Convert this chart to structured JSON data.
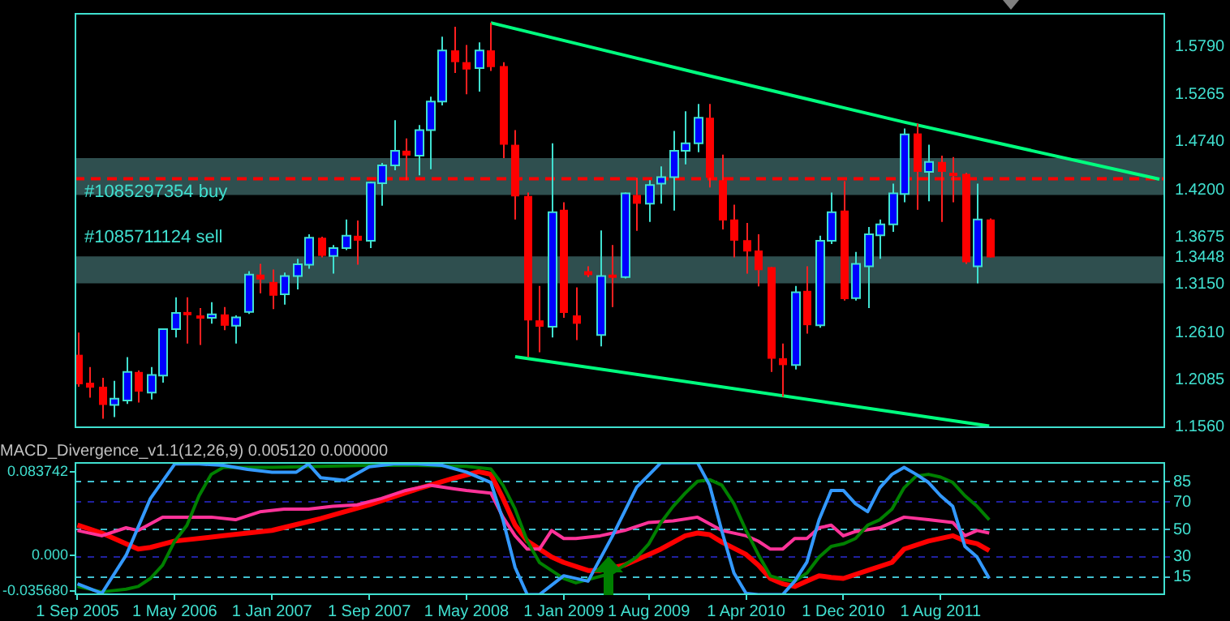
{
  "chart_data": [
    {
      "type": "candlestick",
      "x": [
        "2005-09",
        "2005-10",
        "2005-11",
        "2005-12",
        "2006-01",
        "2006-02",
        "2006-03",
        "2006-04",
        "2006-05",
        "2006-06",
        "2006-07",
        "2006-08",
        "2006-09",
        "2006-10",
        "2006-11",
        "2006-12",
        "2007-01",
        "2007-02",
        "2007-03",
        "2007-04",
        "2007-05",
        "2007-06",
        "2007-07",
        "2007-08",
        "2007-09",
        "2007-10",
        "2007-11",
        "2007-12",
        "2008-01",
        "2008-02",
        "2008-03",
        "2008-04",
        "2008-05",
        "2008-06",
        "2008-07",
        "2008-08",
        "2008-09",
        "2008-10",
        "2008-11",
        "2008-12",
        "2009-01",
        "2009-02",
        "2009-03",
        "2009-04",
        "2009-05",
        "2009-06",
        "2009-07",
        "2009-08",
        "2009-09",
        "2009-10",
        "2009-11",
        "2009-12",
        "2010-01",
        "2010-02",
        "2010-03",
        "2010-04",
        "2010-05",
        "2010-06",
        "2010-07",
        "2010-08",
        "2010-09",
        "2010-10",
        "2010-11",
        "2010-12",
        "2011-01",
        "2011-02",
        "2011-03",
        "2011-04",
        "2011-05",
        "2011-06",
        "2011-07",
        "2011-08",
        "2011-09",
        "2011-10",
        "2011-11",
        "2011-12"
      ],
      "ohlc": [
        [
          1.2365,
          1.2611,
          1.201,
          1.2037
        ],
        [
          1.2054,
          1.2229,
          1.1889,
          1.1999
        ],
        [
          1.201,
          1.2108,
          1.1654,
          1.1807
        ],
        [
          1.1807,
          1.2075,
          1.1671,
          1.1878
        ],
        [
          1.1857,
          1.2338,
          1.1818,
          1.2174
        ],
        [
          1.2174,
          1.219,
          1.1835,
          1.1955
        ],
        [
          1.1944,
          1.2229,
          1.1867,
          1.2141
        ],
        [
          1.2135,
          1.266,
          1.2054,
          1.265
        ],
        [
          1.265,
          1.3005,
          1.2557,
          1.283
        ],
        [
          1.2841,
          1.3005,
          1.2491,
          1.2808
        ],
        [
          1.2803,
          1.2885,
          1.2475,
          1.2776
        ],
        [
          1.2776,
          1.2951,
          1.271,
          1.2814
        ],
        [
          1.2814,
          1.2896,
          1.2639,
          1.2688
        ],
        [
          1.2688,
          1.2803,
          1.2491,
          1.2781
        ],
        [
          1.2841,
          1.3295,
          1.2819,
          1.3257
        ],
        [
          1.3257,
          1.3377,
          1.3049,
          1.3202
        ],
        [
          1.3175,
          1.3312,
          1.2874,
          1.3022
        ],
        [
          1.3038,
          1.3279,
          1.2923,
          1.3241
        ],
        [
          1.3241,
          1.3432,
          1.3093,
          1.3372
        ],
        [
          1.3366,
          1.3705,
          1.3323,
          1.3667
        ],
        [
          1.3667,
          1.3678,
          1.3448,
          1.3465
        ],
        [
          1.3465,
          1.3585,
          1.3268,
          1.3552
        ],
        [
          1.3552,
          1.387,
          1.353,
          1.3689
        ],
        [
          1.3689,
          1.3859,
          1.3366,
          1.3634
        ],
        [
          1.3634,
          1.429,
          1.3552,
          1.428
        ],
        [
          1.4274,
          1.4499,
          1.4023,
          1.4471
        ],
        [
          1.4471,
          1.4975,
          1.4417,
          1.4635
        ],
        [
          1.4635,
          1.4772,
          1.4307,
          1.4581
        ],
        [
          1.4581,
          1.492,
          1.4362,
          1.4865
        ],
        [
          1.4865,
          1.5237,
          1.4428,
          1.5182
        ],
        [
          1.5182,
          1.5904,
          1.5139,
          1.5751
        ],
        [
          1.5751,
          1.6014,
          1.55,
          1.562
        ],
        [
          1.562,
          1.5811,
          1.5264,
          1.5538
        ],
        [
          1.5554,
          1.5839,
          1.5292,
          1.5751
        ],
        [
          1.5751,
          1.6058,
          1.5522,
          1.5565
        ],
        [
          1.5576,
          1.562,
          1.4553,
          1.4701
        ],
        [
          1.4701,
          1.4865,
          1.387,
          1.4127
        ],
        [
          1.4132,
          1.417,
          1.2338,
          1.2748
        ],
        [
          1.2748,
          1.3131,
          1.2393,
          1.2677
        ],
        [
          1.2677,
          1.4717,
          1.2557,
          1.3952
        ],
        [
          1.3979,
          1.4061,
          1.2776,
          1.283
        ],
        [
          1.2803,
          1.3115,
          1.2529,
          1.271
        ],
        [
          1.3295,
          1.335,
          1.323,
          1.3251
        ],
        [
          1.2584,
          1.3749,
          1.2458,
          1.3241
        ],
        [
          1.3257,
          1.3585,
          1.2896,
          1.3235
        ],
        [
          1.323,
          1.417,
          1.3213,
          1.416
        ],
        [
          1.4143,
          1.4334,
          1.3744,
          1.4045
        ],
        [
          1.4045,
          1.4307,
          1.3842,
          1.4252
        ],
        [
          1.4269,
          1.446,
          1.4045,
          1.434
        ],
        [
          1.434,
          1.4854,
          1.397,
          1.4635
        ],
        [
          1.4635,
          1.5073,
          1.4482,
          1.4717
        ],
        [
          1.4717,
          1.5155,
          1.4619,
          1.5002
        ],
        [
          1.5002,
          1.5155,
          1.4225,
          1.4334
        ],
        [
          1.4307,
          1.4592,
          1.376,
          1.3859
        ],
        [
          1.387,
          1.4034,
          1.3448,
          1.3634
        ],
        [
          1.364,
          1.3831,
          1.3268,
          1.3514
        ],
        [
          1.3525,
          1.3705,
          1.3126,
          1.3306
        ],
        [
          1.3339,
          1.3339,
          1.2174,
          1.2321
        ],
        [
          1.2327,
          1.2491,
          1.19,
          1.225
        ],
        [
          1.225,
          1.3131,
          1.2201,
          1.306
        ],
        [
          1.3076,
          1.335,
          1.2601,
          1.2694
        ],
        [
          1.2694,
          1.3689,
          1.2666,
          1.3634
        ],
        [
          1.3634,
          1.417,
          1.3596,
          1.3952
        ],
        [
          1.3968,
          1.4296,
          1.2967,
          1.2983
        ],
        [
          1.2994,
          1.3508,
          1.2967,
          1.3377
        ],
        [
          1.335,
          1.3787,
          1.2885,
          1.3705
        ],
        [
          1.3695,
          1.387,
          1.3432,
          1.3815
        ],
        [
          1.3815,
          1.4269,
          1.3733,
          1.416
        ],
        [
          1.4154,
          1.4881,
          1.4061,
          1.4816
        ],
        [
          1.4827,
          1.4936,
          1.3979,
          1.44
        ],
        [
          1.44,
          1.4701,
          1.4072,
          1.451
        ],
        [
          1.451,
          1.4581,
          1.3842,
          1.44
        ],
        [
          1.4389,
          1.4564,
          1.4061,
          1.4373
        ],
        [
          1.4378,
          1.4389,
          1.3377,
          1.3394
        ],
        [
          1.335,
          1.4269,
          1.3159,
          1.387
        ],
        [
          1.387,
          1.3881,
          1.3448,
          1.3448
        ]
      ],
      "series": [
        {
          "type": "line",
          "color": "#00ff7f",
          "x": [
            "2008-07",
            "2009-12",
            "2011-05",
            "2013-02"
          ],
          "values": [
            1.6058,
            1.55,
            1.4953,
            1.4318
          ]
        },
        {
          "type": "line",
          "color": "#00ff7f",
          "x": [
            "2008-09",
            "2011-12"
          ],
          "values": [
            1.2344,
            1.1573
          ]
        }
      ],
      "xlim": [
        "2005-08-24",
        "2013-02-15"
      ],
      "ylim": [
        1.155,
        1.6167
      ],
      "yticks": [
        {
          "value": 1.579,
          "label": "1.5790"
        },
        {
          "value": 1.5265,
          "label": "1.5265"
        },
        {
          "value": 1.474,
          "label": "1.4740"
        },
        {
          "value": 1.42,
          "label": "1.4200"
        },
        {
          "value": 1.3675,
          "label": "1.3675"
        },
        {
          "value": 1.3448,
          "label": "1.3448"
        },
        {
          "value": 1.315,
          "label": "1.3150"
        },
        {
          "value": 1.261,
          "label": "1.2610"
        },
        {
          "value": 1.2085,
          "label": "1.2085"
        },
        {
          "value": 1.156,
          "label": "1.1560"
        }
      ],
      "tick_labels": "y",
      "bands": [
        {
          "axis": "y",
          "from": 1.4143,
          "to": 1.4553,
          "color": "#2f4f4f"
        },
        {
          "axis": "y",
          "from": 1.3159,
          "to": 1.3459,
          "color": "#2f4f4f",
          "label": "#1085711124 sell"
        }
      ],
      "ref_lines": [
        {
          "axis": "y",
          "value": 1.4324,
          "label": "#1085297354 buy",
          "color": "#ff0000",
          "line_style": "dashed"
        }
      ]
    },
    {
      "type": "line",
      "title": "MACD_Divergence_v1.1(12,26,9) 0.005120 0.000000",
      "series": [
        {
          "color": "#3399ff",
          "x": [
            "2005-09",
            "2005-11",
            "2006-01",
            "2006-03",
            "2006-05",
            "2006-07",
            "2006-09",
            "2006-11",
            "2007-01",
            "2007-03",
            "2007-04",
            "2007-05",
            "2007-07",
            "2007-09",
            "2007-11",
            "2008-01",
            "2008-03",
            "2008-05",
            "2008-07",
            "2008-08",
            "2008-09",
            "2008-10",
            "2008-11",
            "2009-01",
            "2009-03",
            "2009-05",
            "2009-07",
            "2009-08",
            "2009-09",
            "2009-12",
            "2010-01",
            "2010-02",
            "2010-03",
            "2010-04",
            "2010-05",
            "2010-07",
            "2010-08",
            "2010-09",
            "2010-10",
            "2010-11",
            "2010-12",
            "2011-01",
            "2011-02",
            "2011-03",
            "2011-04",
            "2011-05",
            "2011-06",
            "2011-07",
            "2011-08",
            "2011-09",
            "2011-10",
            "2011-11",
            "2011-12"
          ],
          "values": [
            10,
            3,
            31,
            72.7,
            98,
            98,
            97,
            94,
            92,
            92,
            98,
            88,
            86,
            96,
            98,
            98,
            97,
            92,
            84.5,
            57,
            22,
            2.1,
            2.1,
            16,
            12,
            45,
            81,
            90,
            99,
            99,
            82.5,
            49,
            18,
            3,
            2.1,
            2.1,
            12,
            26,
            57,
            78.6,
            78.6,
            68.8,
            63,
            80.6,
            90.4,
            95.5,
            90.4,
            84.5,
            74.7,
            66.9,
            37.5,
            29.7,
            14
          ]
        },
        {
          "color": "#008000",
          "x": [
            "2005-09",
            "2005-11",
            "2006-01",
            "2006-02",
            "2006-03",
            "2006-04",
            "2006-05",
            "2006-06",
            "2006-07",
            "2006-08",
            "2006-09",
            "2007-01",
            "2007-05",
            "2007-09",
            "2008-01",
            "2008-05",
            "2008-07",
            "2008-08",
            "2008-09",
            "2008-10",
            "2008-11",
            "2009-01",
            "2009-02",
            "2009-03",
            "2009-05",
            "2009-07",
            "2009-08",
            "2009-09",
            "2009-10",
            "2009-11",
            "2009-12",
            "2010-01",
            "2010-02",
            "2010-03",
            "2010-04",
            "2010-05",
            "2010-06",
            "2010-07",
            "2010-08",
            "2010-09",
            "2010-10",
            "2010-11",
            "2010-12",
            "2011-01",
            "2011-02",
            "2011-03",
            "2011-04",
            "2011-05",
            "2011-06",
            "2011-07",
            "2011-08",
            "2011-09",
            "2011-10",
            "2011-11",
            "2011-12"
          ],
          "values": [
            8.1,
            4.1,
            6.1,
            8.1,
            14,
            23.7,
            41.4,
            53,
            74.7,
            90.4,
            95.5,
            95.5,
            96.3,
            97,
            97,
            96.3,
            94.3,
            82.5,
            64.9,
            41.4,
            25.7,
            13.9,
            10.8,
            13.2,
            17.9,
            29.6,
            39.4,
            55.1,
            66.9,
            76.7,
            85.3,
            86.5,
            82.5,
            68.8,
            49.2,
            31.6,
            15.9,
            13.2,
            12,
            17.9,
            29.6,
            37.5,
            39.4,
            43.3,
            53.1,
            57.1,
            64.9,
            80.6,
            89.2,
            90.4,
            88.4,
            84.5,
            74.7,
            66.9,
            57.1
          ]
        },
        {
          "color": "#ff3399",
          "x": [
            "2005-09",
            "2005-11",
            "2006-01",
            "2006-02",
            "2006-04",
            "2006-06",
            "2006-08",
            "2006-10",
            "2006-12",
            "2007-02",
            "2007-04",
            "2007-06",
            "2007-08",
            "2007-10",
            "2007-12",
            "2008-02",
            "2008-04",
            "2008-05",
            "2008-07",
            "2008-08",
            "2008-09",
            "2008-10",
            "2008-11",
            "2008-12",
            "2009-01",
            "2009-02",
            "2009-04",
            "2009-06",
            "2009-08",
            "2009-10",
            "2009-12",
            "2010-02",
            "2010-04",
            "2010-05",
            "2010-06",
            "2010-07",
            "2010-08",
            "2010-09",
            "2010-10",
            "2010-11",
            "2010-12",
            "2011-01",
            "2011-03",
            "2011-04",
            "2011-05",
            "2011-07",
            "2011-09",
            "2011-10",
            "2011-11",
            "2011-12"
          ],
          "values": [
            49.2,
            45.3,
            51.2,
            49.2,
            59,
            59,
            59,
            57.1,
            62.9,
            64.9,
            64.9,
            66.9,
            68,
            72.7,
            78.6,
            82.5,
            79.8,
            78.6,
            76.7,
            59,
            45.3,
            35.5,
            35.5,
            49.2,
            43.3,
            43.3,
            45.3,
            49.2,
            55.1,
            56.3,
            59,
            49.2,
            45.3,
            41.4,
            35.5,
            35.5,
            43.3,
            43.3,
            51.2,
            53.1,
            45.3,
            48.4,
            51.2,
            55.1,
            59,
            57.1,
            55.1,
            45.3,
            49.2,
            47.3
          ]
        },
        {
          "color": "#ff0000",
          "axis": "y2",
          "x": [
            "2005-09",
            "2005-11",
            "2006-01",
            "2006-02",
            "2006-03",
            "2006-05",
            "2006-09",
            "2007-01",
            "2007-05",
            "2007-09",
            "2008-01",
            "2008-04",
            "2008-06",
            "2008-07",
            "2008-08",
            "2008-09",
            "2008-10",
            "2008-12",
            "2009-01",
            "2009-03",
            "2009-04",
            "2009-06",
            "2009-08",
            "2009-09",
            "2009-11",
            "2009-12",
            "2010-01",
            "2010-02",
            "2010-04",
            "2010-05",
            "2010-06",
            "2010-07",
            "2010-08",
            "2010-09",
            "2010-10",
            "2010-11",
            "2010-12",
            "2011-02",
            "2011-04",
            "2011-05",
            "2011-07",
            "2011-09",
            "2011-10",
            "2011-11",
            "2011-12"
          ],
          "values": [
            0.0304,
            0.0224,
            0.0117,
            0.0064,
            0.008,
            0.0144,
            0.0197,
            0.025,
            0.0368,
            0.0506,
            0.0666,
            0.0773,
            0.0837,
            0.0811,
            0.0571,
            0.0304,
            0.0144,
            -0.0016,
            -0.007,
            -0.015,
            -0.015,
            -0.0096,
            0.001,
            0.0064,
            0.0197,
            0.0224,
            0.0208,
            0.0134,
            0.001,
            -0.0096,
            -0.023,
            -0.0283,
            -0.031,
            -0.0256,
            -0.0203,
            -0.0219,
            -0.023,
            -0.015,
            -0.007,
            0.0064,
            0.0144,
            0.0197,
            0.0144,
            0.0117,
            0.0048
          ]
        }
      ],
      "xlim": [
        "2005-08-24",
        "2013-02-15"
      ],
      "xticks": [
        {
          "value": "2005-09",
          "label": "1 Sep 2005"
        },
        {
          "value": "2006-05",
          "label": "1 May 2006"
        },
        {
          "value": "2007-01",
          "label": "1 Jan 2007"
        },
        {
          "value": "2007-09",
          "label": "1 Sep 2007"
        },
        {
          "value": "2008-05",
          "label": "1 May 2008"
        },
        {
          "value": "2009-01",
          "label": "1 Jan 2009"
        },
        {
          "value": "2009-08",
          "label": "1 Aug 2009"
        },
        {
          "value": "2010-04",
          "label": "1 Apr 2010"
        },
        {
          "value": "2010-12",
          "label": "1 Dec 2010"
        },
        {
          "value": "2011-08",
          "label": "1 Aug 2011"
        }
      ],
      "ylim": [
        1.8,
        99.4
      ],
      "yticks": [
        15,
        30,
        50,
        70,
        85
      ],
      "y2lim": [
        -0.0396,
        0.0933
      ],
      "y2ticks": [
        {
          "value": -0.03568,
          "label": "-0.035680"
        },
        {
          "value": 0,
          "label": "0.000"
        },
        {
          "value": 0.083742,
          "label": "0.083742"
        }
      ],
      "grid": "y"
    }
  ]
}
